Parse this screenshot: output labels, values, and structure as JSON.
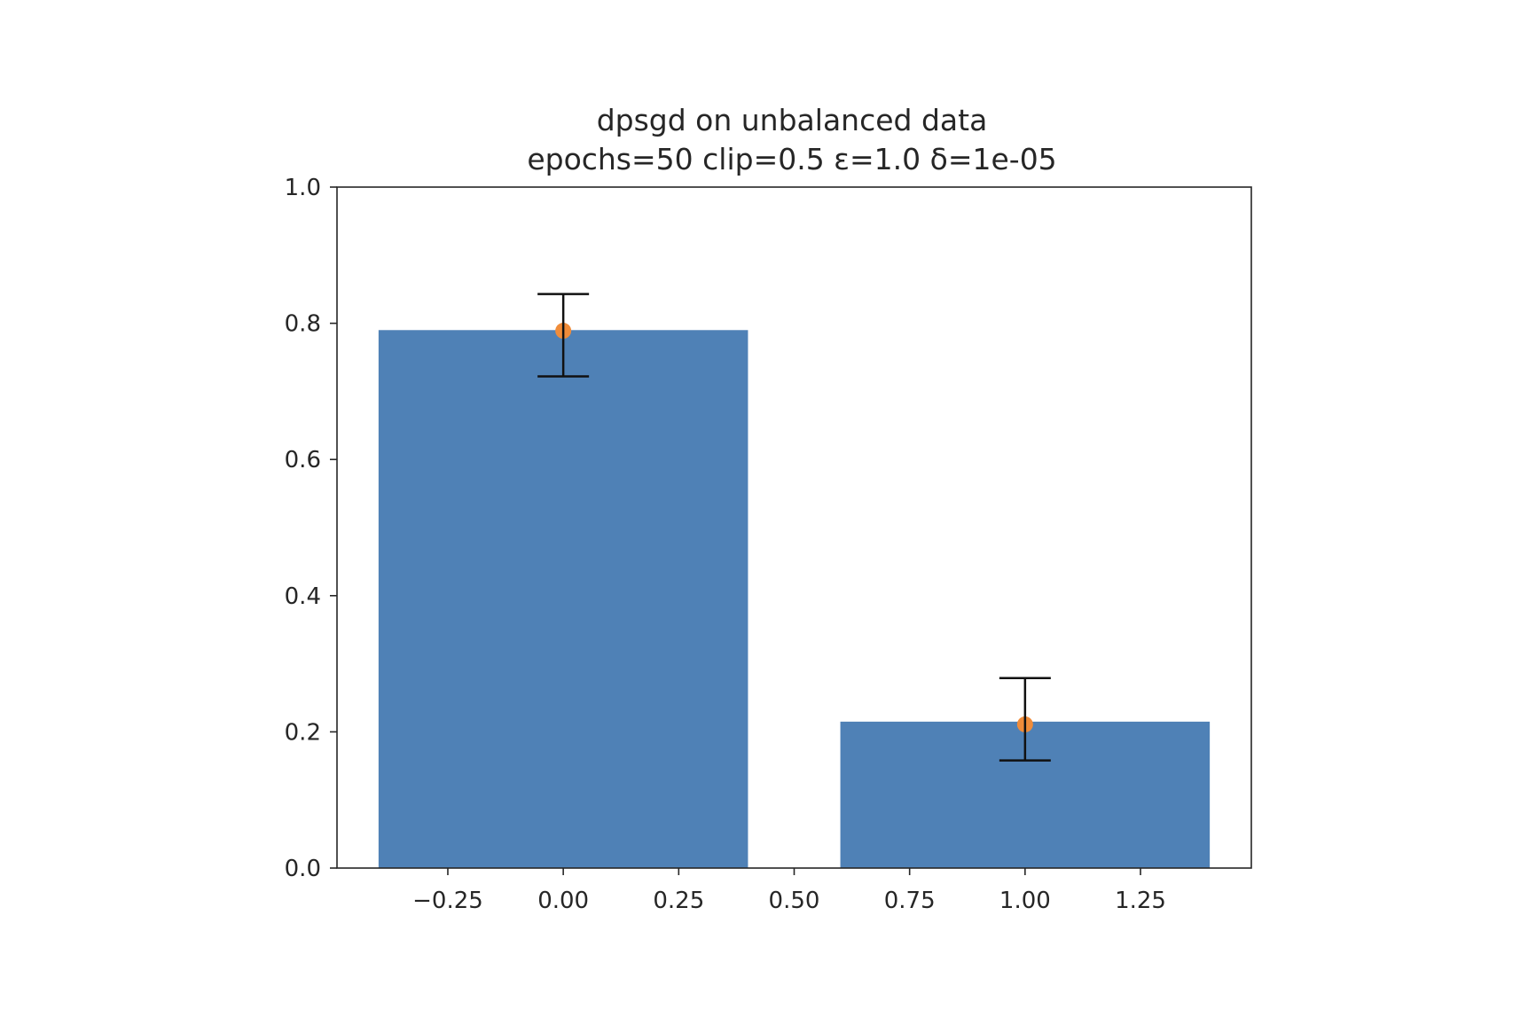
{
  "chart_data": {
    "type": "bar",
    "title": "dpsgd on unbalanced data",
    "subtitle": "epochs=50 clip=0.5 ε=1.0 δ=1e-05",
    "xlabel": "",
    "ylabel": "",
    "x": [
      0,
      1
    ],
    "bar_width": 0.8,
    "values": [
      0.79,
      0.215
    ],
    "error_low": [
      0.722,
      0.158
    ],
    "error_high": [
      0.843,
      0.279
    ],
    "points": [
      0.789,
      0.211
    ],
    "xlim": [
      -0.49,
      1.49
    ],
    "ylim": [
      0,
      1.0
    ],
    "xticks": [
      -0.25,
      0.0,
      0.25,
      0.5,
      0.75,
      1.0,
      1.25
    ],
    "xtick_labels": [
      "−0.25",
      "0.00",
      "0.25",
      "0.50",
      "0.75",
      "1.00",
      "1.25"
    ],
    "yticks": [
      0.0,
      0.2,
      0.4,
      0.6,
      0.8,
      1.0
    ],
    "ytick_labels": [
      "0.0",
      "0.2",
      "0.4",
      "0.6",
      "0.8",
      "1.0"
    ],
    "grid": false,
    "legend": "none",
    "colors": {
      "bar": "#4f81b6",
      "point": "#f08c3a",
      "errorbar": "#111111",
      "axis": "#262626"
    }
  }
}
